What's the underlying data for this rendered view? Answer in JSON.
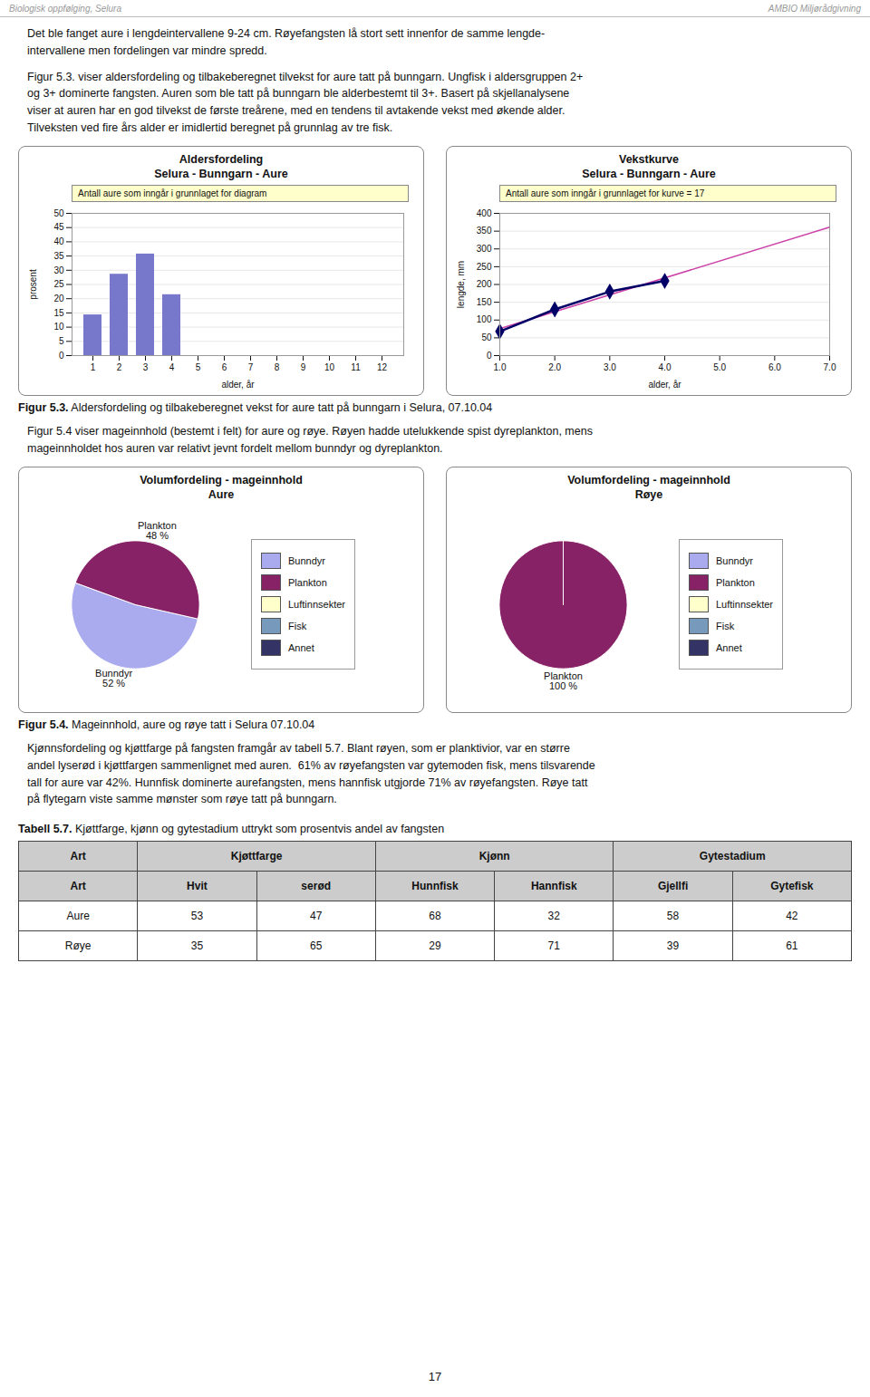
{
  "header": {
    "left": "Biologisk oppfølging, Selura",
    "right": "AMBIO Miljørådgivning"
  },
  "paragraphs": [
    "Det ble fanget aure i lengdeintervallene 9-24 cm. Røyefangsten lå stort sett innenfor de samme lengde-\nintervallene men fordelingen var mindre spredd.",
    "Figur 5.3. viser aldersfordeling og tilbakeberegnet tilvekst for aure tatt på bunngarn. Ungfisk i aldersgruppen 2+\nog 3+ dominerte fangsten. Auren som ble tatt på bunngarn ble alderbestemt til 3+. Basert på skjellanalysene\nviser at auren har en god tilvekst de første treårene, med en tendens til avtakende vekst med økende alder.\nTilveksten ved fire års alder er imidlertid beregnet på grunnlag av tre fisk.",
    "Figur 5.4 viser mageinnhold (bestemt i felt) for aure og røye. Røyen hadde utelukkende spist dyreplankton, mens\nmageinnholdet hos auren var relativt jevnt fordelt mellom bunndyr og dyreplankton.",
    "Kjønnsfordeling og kjøttfarge på fangsten framgår av tabell 5.7. Blant røyen, som er planktivior, var en større\nandel lyserød i kjøttfargen sammenlignet med auren.  61% av røyefangsten var gytemoden fisk, mens tilsvarende\ntall for aure var 42%. Hunnfisk dominerte aurefangsten, mens hannfisk utgjorde 71% av røyefangsten. Røye tatt\npå flytegarn viste samme mønster som røye tatt på bunngarn."
  ],
  "chart_data": [
    {
      "type": "bar",
      "title": "Aldersfordeling",
      "subtitle": "Selura - Bunngarn - Aure",
      "annotation": "Antall aure som inngår i grunnlaget for diagram",
      "categories": [
        1,
        2,
        3,
        4,
        5,
        6,
        7,
        8,
        9,
        10,
        11,
        12
      ],
      "values": [
        14.3,
        28.6,
        35.7,
        21.4,
        0,
        0,
        0,
        0,
        0,
        0,
        0,
        0
      ],
      "color": "#7777cc",
      "xlabel": "alder, år",
      "ylabel": "prosent",
      "ylim": [
        0,
        50
      ],
      "yticks": [
        0,
        5,
        10,
        15,
        20,
        25,
        30,
        35,
        40,
        45,
        50
      ],
      "grid": true
    },
    {
      "type": "line",
      "title": "Vekstkurve",
      "subtitle": "Selura - Bunngarn - Aure",
      "annotation": "Antall aure som inngår i grunnlaget for kurve = 17",
      "series": [
        {
          "color": "#cc44aa",
          "line_style": "solid",
          "x": [
            1,
            7
          ],
          "values": [
            75.6,
            361.2
          ]
        },
        {
          "color": "#000066",
          "line_style": "solid",
          "marker": "diamond",
          "x": [
            1,
            2,
            3,
            4
          ],
          "values": [
            68,
            130,
            180,
            210
          ]
        }
      ],
      "xlabel": "alder, år",
      "ylabel": "lengde, mm",
      "xlim": [
        1,
        7
      ],
      "xticks": [
        1,
        2,
        3,
        4,
        5,
        6,
        7
      ],
      "ylim": [
        0,
        400
      ],
      "yticks": [
        0,
        50,
        100,
        150,
        200,
        250,
        300,
        350,
        400
      ],
      "grid": true
    },
    {
      "type": "pie",
      "title": "Volumfordeling - mageinnhold",
      "subtitle": "Aure",
      "categories": [
        "Bunndyr",
        "Plankton"
      ],
      "values": [
        52,
        48
      ],
      "value_labels": [
        "52 %",
        "48 %"
      ],
      "colors": [
        "#aaaaee",
        "#882266"
      ],
      "data_labels": true,
      "legend": "right",
      "legend_items": [
        {
          "name": "Bunndyr",
          "color": "#aaaaee"
        },
        {
          "name": "Plankton",
          "color": "#882266"
        },
        {
          "name": "Luftinnsekter",
          "color": "#ffffcc"
        },
        {
          "name": "Fisk",
          "color": "#7799bb"
        },
        {
          "name": "Annet",
          "color": "#333366"
        }
      ]
    },
    {
      "type": "pie",
      "title": "Volumfordeling - mageinnhold",
      "subtitle": "Røye",
      "categories": [
        "Plankton"
      ],
      "values": [
        100
      ],
      "value_labels": [
        "100 %"
      ],
      "colors": [
        "#882266"
      ],
      "data_labels": true,
      "legend": "right",
      "legend_items": [
        {
          "name": "Bunndyr",
          "color": "#aaaaee"
        },
        {
          "name": "Plankton",
          "color": "#882266"
        },
        {
          "name": "Luftinnsekter",
          "color": "#ffffcc"
        },
        {
          "name": "Fisk",
          "color": "#7799bb"
        },
        {
          "name": "Annet",
          "color": "#333366"
        }
      ]
    }
  ],
  "captions": [
    {
      "bold": "Figur 5.3.",
      "text": " Aldersfordeling og tilbakeberegnet vekst for aure tatt på bunngarn i Selura, 07.10.04"
    },
    {
      "bold": "Figur 5.4.",
      "text": " Mageinnhold, aure og røye tatt i Selura 07.10.04"
    }
  ],
  "table": {
    "title_bold": "Tabell 5.7.",
    "title": " Kjøttfarge, kjønn og gytestadium uttrykt som prosentvis andel av fangsten",
    "top_headers": [
      "Art",
      "Kjøttfarge",
      "Kjønn",
      "Gytestadium"
    ],
    "top_spans": [
      [
        0,
        0
      ],
      [
        1,
        2
      ],
      [
        3,
        4
      ],
      [
        5,
        6
      ]
    ],
    "sub_headers": [
      "Art",
      "Hvit",
      "serød",
      "Hunnfisk",
      "Hannfisk",
      "Gjellfi",
      "Gytefisk"
    ],
    "rows": [
      [
        "Aure",
        "53",
        "47",
        "68",
        "32",
        "58",
        "42"
      ],
      [
        "Røye",
        "35",
        "65",
        "29",
        "71",
        "39",
        "61"
      ]
    ]
  },
  "page_number": "17"
}
